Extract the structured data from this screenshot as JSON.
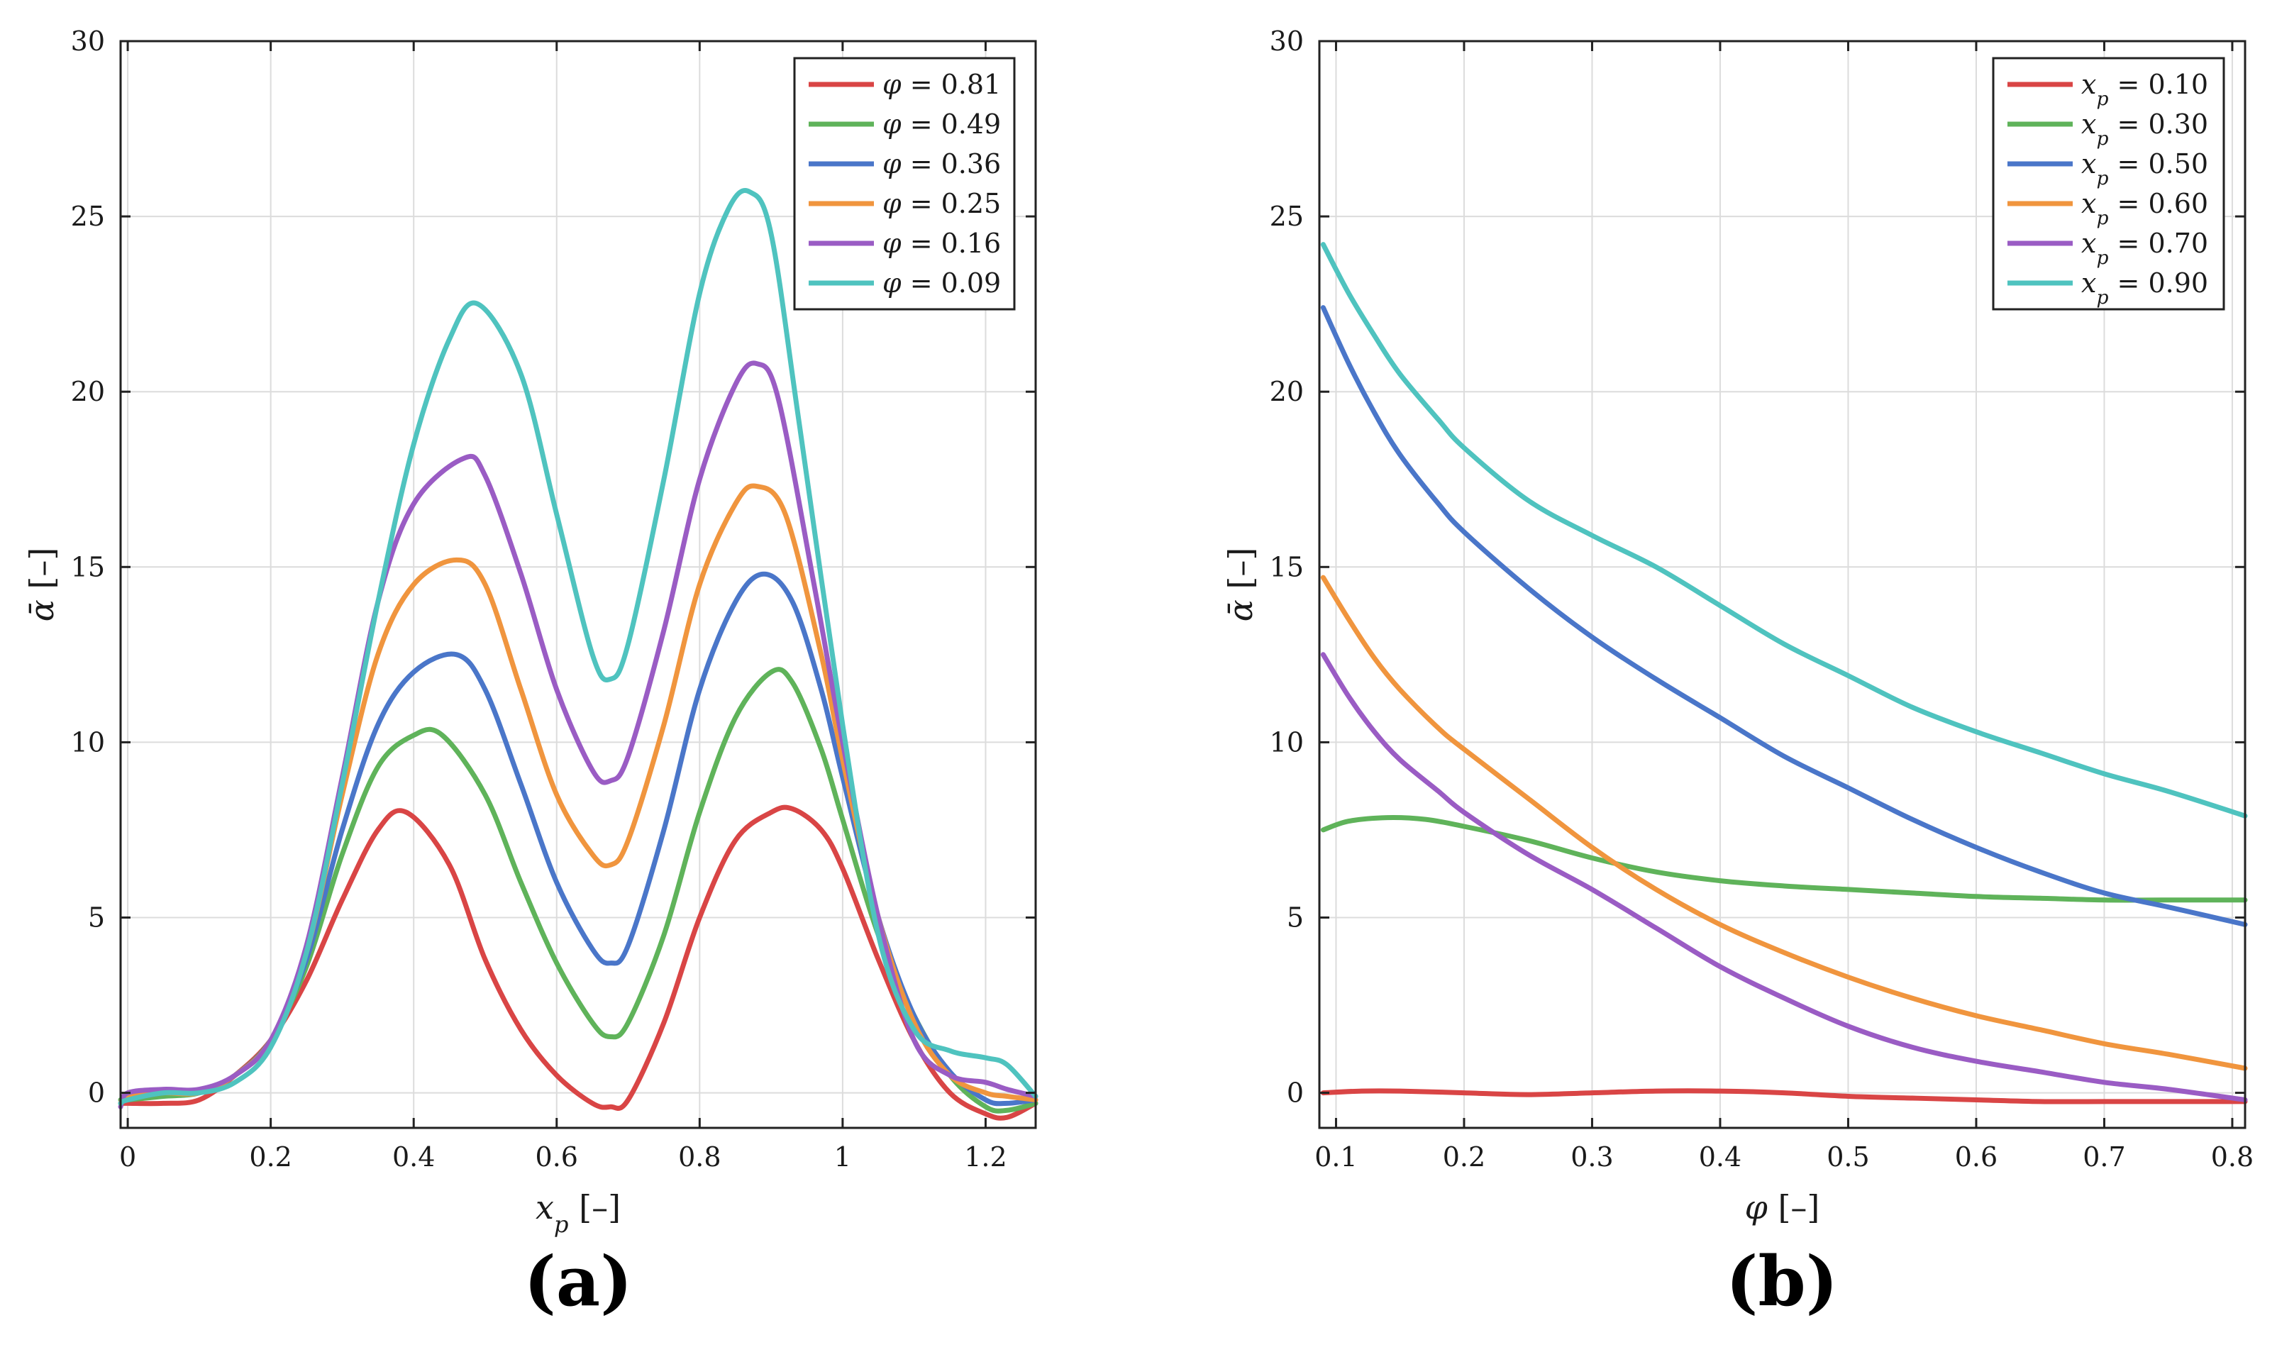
{
  "colors": {
    "red": "#d94545",
    "green": "#5fb35a",
    "blue": "#4a76c9",
    "orange": "#f0953e",
    "purple": "#9a5cc4",
    "cyan": "#4fc3bf",
    "grid": "#dcdcdc",
    "axis": "#222222"
  },
  "chart_data": [
    {
      "type": "line",
      "panel_label": "(a)",
      "xlabel": "x_p [–]",
      "ylabel": "ᾱ [–]",
      "xlim": [
        -0.01,
        1.27
      ],
      "ylim": [
        -1,
        30
      ],
      "xticks": [
        0,
        0.2,
        0.4,
        0.6,
        0.8,
        1,
        1.2
      ],
      "xtick_labels": [
        "0",
        "0.2",
        "0.4",
        "0.6",
        "0.8",
        "1",
        "1.2"
      ],
      "yticks": [
        0,
        5,
        10,
        15,
        20,
        25,
        30
      ],
      "ytick_labels": [
        "0",
        "5",
        "10",
        "15",
        "20",
        "25",
        "30"
      ],
      "grid": true,
      "legend_position": "top-right",
      "series": [
        {
          "name": "φ = 0.81",
          "color": "red",
          "x": [
            -0.01,
            0,
            0.05,
            0.1,
            0.15,
            0.2,
            0.25,
            0.3,
            0.35,
            0.39,
            0.45,
            0.5,
            0.55,
            0.6,
            0.65,
            0.675,
            0.7,
            0.75,
            0.8,
            0.85,
            0.9,
            0.93,
            0.97,
            1.0,
            1.05,
            1.1,
            1.15,
            1.2,
            1.23,
            1.27
          ],
          "y": [
            -0.3,
            -0.3,
            -0.3,
            -0.2,
            0.5,
            1.5,
            3.2,
            5.5,
            7.5,
            8,
            6.5,
            3.8,
            1.8,
            0.5,
            -0.3,
            -0.4,
            -0.2,
            2,
            5,
            7.2,
            8,
            8.1,
            7.5,
            6.4,
            3.8,
            1.5,
            0,
            -0.6,
            -0.7,
            -0.3
          ]
        },
        {
          "name": "φ = 0.49",
          "color": "green",
          "x": [
            -0.01,
            0,
            0.05,
            0.1,
            0.15,
            0.2,
            0.25,
            0.3,
            0.35,
            0.4,
            0.44,
            0.5,
            0.55,
            0.6,
            0.65,
            0.675,
            0.7,
            0.75,
            0.8,
            0.85,
            0.9,
            0.93,
            0.97,
            1.0,
            1.05,
            1.1,
            1.15,
            1.2,
            1.23,
            1.27
          ],
          "y": [
            -0.2,
            -0.2,
            -0.1,
            0,
            0.5,
            1.5,
            3.6,
            6.8,
            9.3,
            10.2,
            10.2,
            8.5,
            6,
            3.7,
            2,
            1.6,
            2,
            4.5,
            8,
            10.7,
            12,
            11.7,
            9.8,
            7.8,
            4.5,
            2.2,
            0.5,
            -0.4,
            -0.5,
            -0.3
          ]
        },
        {
          "name": "φ = 0.36",
          "color": "blue",
          "x": [
            -0.01,
            0,
            0.05,
            0.1,
            0.15,
            0.2,
            0.25,
            0.3,
            0.35,
            0.4,
            0.46,
            0.5,
            0.55,
            0.6,
            0.65,
            0.675,
            0.7,
            0.75,
            0.8,
            0.85,
            0.89,
            0.93,
            0.97,
            1.0,
            1.05,
            1.1,
            1.15,
            1.2,
            1.23,
            1.27
          ],
          "y": [
            -0.3,
            -0.2,
            0,
            0,
            0.5,
            1.5,
            3.8,
            7.5,
            10.5,
            12,
            12.5,
            11.5,
            8.8,
            6,
            4.1,
            3.7,
            4.2,
            7.5,
            11.5,
            14,
            14.8,
            14,
            11.5,
            9,
            5,
            2.2,
            0.6,
            -0.2,
            -0.3,
            -0.2
          ]
        },
        {
          "name": "φ = 0.25",
          "color": "orange",
          "x": [
            -0.01,
            0,
            0.05,
            0.1,
            0.15,
            0.2,
            0.25,
            0.3,
            0.35,
            0.4,
            0.46,
            0.5,
            0.55,
            0.6,
            0.65,
            0.675,
            0.7,
            0.75,
            0.8,
            0.85,
            0.88,
            0.92,
            0.97,
            1.0,
            1.05,
            1.1,
            1.15,
            1.2,
            1.23,
            1.27
          ],
          "y": [
            -0.3,
            -0.1,
            0,
            0,
            0.5,
            1.5,
            4,
            8.5,
            12.5,
            14.5,
            15.2,
            14.5,
            11.5,
            8.5,
            6.8,
            6.5,
            7.2,
            10.5,
            14.5,
            16.8,
            17.3,
            16.5,
            12.5,
            9.5,
            5,
            2,
            0.5,
            0,
            -0.1,
            -0.2
          ]
        },
        {
          "name": "φ = 0.16",
          "color": "purple",
          "x": [
            -0.01,
            0,
            0.05,
            0.1,
            0.15,
            0.2,
            0.25,
            0.3,
            0.35,
            0.4,
            0.47,
            0.5,
            0.55,
            0.6,
            0.65,
            0.675,
            0.7,
            0.75,
            0.8,
            0.85,
            0.88,
            0.91,
            0.96,
            1.0,
            1.05,
            1.1,
            1.15,
            1.2,
            1.23,
            1.27
          ],
          "y": [
            -0.4,
            0,
            0.1,
            0.1,
            0.5,
            1.5,
            4.2,
            9,
            14,
            16.8,
            18.1,
            17.6,
            14.8,
            11.5,
            9.2,
            8.9,
            9.6,
            13.2,
            17.5,
            20.2,
            20.8,
            19.8,
            14.5,
            10,
            5,
            1.5,
            0.5,
            0.3,
            0.1,
            -0.1
          ]
        },
        {
          "name": "φ = 0.09",
          "color": "cyan",
          "x": [
            -0.01,
            0,
            0.05,
            0.1,
            0.15,
            0.2,
            0.25,
            0.3,
            0.35,
            0.4,
            0.45,
            0.49,
            0.55,
            0.6,
            0.65,
            0.675,
            0.7,
            0.75,
            0.8,
            0.84,
            0.87,
            0.9,
            0.94,
            1.0,
            1.05,
            1.1,
            1.15,
            1.2,
            1.23,
            1.27
          ],
          "y": [
            -0.3,
            -0.2,
            0,
            0,
            0.3,
            1.3,
            4,
            8.8,
            14,
            18.5,
            21.5,
            22.5,
            20.5,
            16.5,
            12.5,
            11.8,
            12.8,
            17.5,
            22.8,
            25.2,
            25.7,
            24.5,
            19,
            10.5,
            4.5,
            1.8,
            1.2,
            1,
            0.8,
            -0.1
          ]
        }
      ]
    },
    {
      "type": "line",
      "panel_label": "(b)",
      "xlabel": "φ [–]",
      "ylabel": "ᾱ [–]",
      "xlim": [
        0.087,
        0.81
      ],
      "ylim": [
        -1,
        30
      ],
      "xticks": [
        0.1,
        0.2,
        0.3,
        0.4,
        0.5,
        0.6,
        0.7,
        0.8
      ],
      "xtick_labels": [
        "0.1",
        "0.2",
        "0.3",
        "0.4",
        "0.5",
        "0.6",
        "0.7",
        "0.8"
      ],
      "yticks": [
        0,
        5,
        10,
        15,
        20,
        25,
        30
      ],
      "ytick_labels": [
        "0",
        "5",
        "10",
        "15",
        "20",
        "25",
        "30"
      ],
      "grid": true,
      "legend_position": "top-right",
      "series": [
        {
          "name": "x_p = 0.10",
          "color": "red",
          "x": [
            0.09,
            0.12,
            0.15,
            0.2,
            0.25,
            0.3,
            0.35,
            0.4,
            0.45,
            0.5,
            0.55,
            0.6,
            0.65,
            0.7,
            0.75,
            0.81
          ],
          "y": [
            0,
            0.05,
            0.05,
            0,
            -0.05,
            0,
            0.05,
            0.05,
            0,
            -0.1,
            -0.15,
            -0.2,
            -0.25,
            -0.25,
            -0.25,
            -0.25
          ]
        },
        {
          "name": "x_p = 0.30",
          "color": "green",
          "x": [
            0.09,
            0.11,
            0.14,
            0.17,
            0.2,
            0.25,
            0.3,
            0.35,
            0.4,
            0.45,
            0.5,
            0.55,
            0.6,
            0.65,
            0.7,
            0.75,
            0.81
          ],
          "y": [
            7.5,
            7.75,
            7.85,
            7.8,
            7.6,
            7.2,
            6.7,
            6.3,
            6.05,
            5.9,
            5.8,
            5.7,
            5.6,
            5.55,
            5.5,
            5.5,
            5.5
          ]
        },
        {
          "name": "x_p = 0.50",
          "color": "blue",
          "x": [
            0.09,
            0.11,
            0.13,
            0.15,
            0.18,
            0.2,
            0.25,
            0.3,
            0.35,
            0.4,
            0.45,
            0.5,
            0.55,
            0.6,
            0.65,
            0.7,
            0.75,
            0.81
          ],
          "y": [
            22.4,
            20.8,
            19.4,
            18.2,
            16.8,
            16,
            14.4,
            13,
            11.8,
            10.7,
            9.6,
            8.7,
            7.8,
            7,
            6.3,
            5.7,
            5.3,
            4.8
          ]
        },
        {
          "name": "x_p = 0.60",
          "color": "orange",
          "x": [
            0.09,
            0.11,
            0.13,
            0.15,
            0.18,
            0.2,
            0.25,
            0.3,
            0.35,
            0.4,
            0.45,
            0.5,
            0.55,
            0.6,
            0.65,
            0.7,
            0.75,
            0.81
          ],
          "y": [
            14.7,
            13.5,
            12.4,
            11.5,
            10.4,
            9.8,
            8.4,
            7,
            5.8,
            4.8,
            4,
            3.3,
            2.7,
            2.2,
            1.8,
            1.4,
            1.1,
            0.7
          ]
        },
        {
          "name": "x_p = 0.70",
          "color": "purple",
          "x": [
            0.09,
            0.11,
            0.13,
            0.15,
            0.18,
            0.2,
            0.25,
            0.3,
            0.35,
            0.4,
            0.45,
            0.5,
            0.55,
            0.6,
            0.65,
            0.7,
            0.75,
            0.81
          ],
          "y": [
            12.5,
            11.3,
            10.3,
            9.5,
            8.6,
            8,
            6.8,
            5.8,
            4.7,
            3.6,
            2.7,
            1.9,
            1.3,
            0.9,
            0.6,
            0.3,
            0.1,
            -0.2
          ]
        },
        {
          "name": "x_p = 0.90",
          "color": "cyan",
          "x": [
            0.09,
            0.11,
            0.13,
            0.15,
            0.18,
            0.2,
            0.25,
            0.3,
            0.35,
            0.4,
            0.45,
            0.5,
            0.55,
            0.6,
            0.65,
            0.7,
            0.75,
            0.81
          ],
          "y": [
            24.2,
            22.8,
            21.6,
            20.5,
            19.2,
            18.4,
            16.9,
            15.9,
            15,
            13.9,
            12.8,
            11.9,
            11,
            10.3,
            9.7,
            9.1,
            8.6,
            7.9
          ]
        }
      ]
    }
  ]
}
